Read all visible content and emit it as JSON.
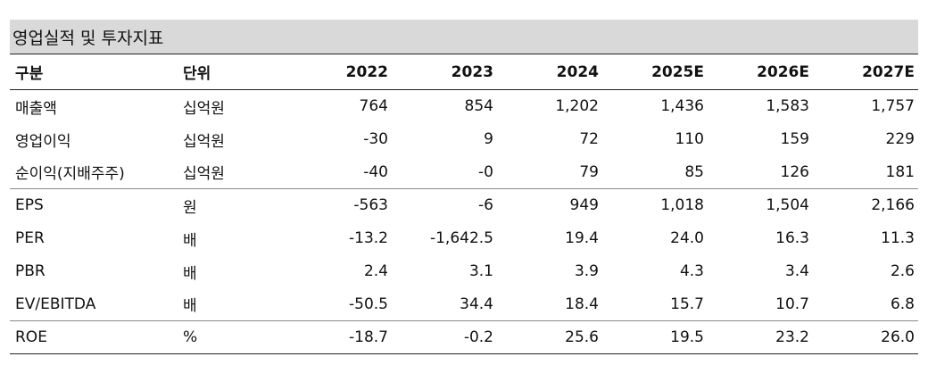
{
  "title": "영업실적 및 투자지표",
  "headers": {
    "label": "구분",
    "unit": "단위",
    "years": [
      "2022",
      "2023",
      "2024",
      "2025E",
      "2026E",
      "2027E"
    ]
  },
  "rows": [
    {
      "label": "매출액",
      "unit": "십억원",
      "values": [
        "764",
        "854",
        "1,202",
        "1,436",
        "1,583",
        "1,757"
      ]
    },
    {
      "label": "영업이익",
      "unit": "십억원",
      "values": [
        "-30",
        "9",
        "72",
        "110",
        "159",
        "229"
      ]
    },
    {
      "label": "순이익(지배주주)",
      "unit": "십억원",
      "values": [
        "-40",
        "-0",
        "79",
        "85",
        "126",
        "181"
      ]
    },
    {
      "label": "EPS",
      "unit": "원",
      "values": [
        "-563",
        "-6",
        "949",
        "1,018",
        "1,504",
        "2,166"
      ]
    },
    {
      "label": "PER",
      "unit": "배",
      "values": [
        "-13.2",
        "-1,642.5",
        "19.4",
        "24.0",
        "16.3",
        "11.3"
      ]
    },
    {
      "label": "PBR",
      "unit": "배",
      "values": [
        "2.4",
        "3.1",
        "3.9",
        "4.3",
        "3.4",
        "2.6"
      ]
    },
    {
      "label": "EV/EBITDA",
      "unit": "배",
      "values": [
        "-50.5",
        "34.4",
        "18.4",
        "15.7",
        "10.7",
        "6.8"
      ]
    },
    {
      "label": "ROE",
      "unit": "%",
      "values": [
        "-18.7",
        "-0.2",
        "25.6",
        "19.5",
        "23.2",
        "26.0"
      ]
    }
  ]
}
